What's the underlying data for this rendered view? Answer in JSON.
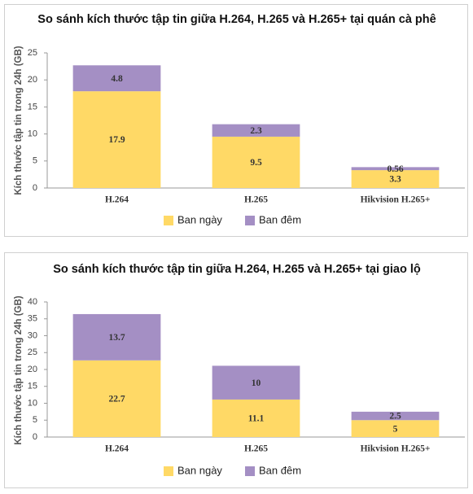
{
  "chart_data": [
    {
      "type": "stacked_bar",
      "title": "So sánh kích thước tập tin giữa H.264, H.265 và H.265+ tại quán cà phê",
      "y_label": "Kích thước tập tin trong 24h (GB)",
      "categories": [
        "H.264",
        "H.265",
        "Hikvision H.265+"
      ],
      "series": [
        {
          "name": "Ban ngày",
          "color": "#ffd966",
          "values": [
            17.9,
            9.5,
            3.3
          ]
        },
        {
          "name": "Ban đêm",
          "color": "#a48fc4",
          "values": [
            4.8,
            2.3,
            0.56
          ]
        }
      ],
      "ylim": [
        0,
        25
      ],
      "yticks": [
        0,
        5,
        10,
        15,
        20,
        25
      ],
      "grid": false,
      "legend": "bottom"
    },
    {
      "type": "stacked_bar",
      "title": "So sánh kích thước tập tin giữa H.264, H.265 và H.265+ tại giao lộ",
      "y_label": "Kích thước tập tin trong 24h (GB)",
      "categories": [
        "H.264",
        "H.265",
        "Hikvision H.265+"
      ],
      "series": [
        {
          "name": "Ban ngày",
          "color": "#ffd966",
          "values": [
            22.7,
            11.1,
            5
          ]
        },
        {
          "name": "Ban đêm",
          "color": "#a48fc4",
          "values": [
            13.7,
            10,
            2.5
          ]
        }
      ],
      "ylim": [
        0,
        40
      ],
      "yticks": [
        0,
        5,
        10,
        15,
        20,
        25,
        30,
        35,
        40
      ],
      "grid": false,
      "legend": "bottom"
    }
  ]
}
